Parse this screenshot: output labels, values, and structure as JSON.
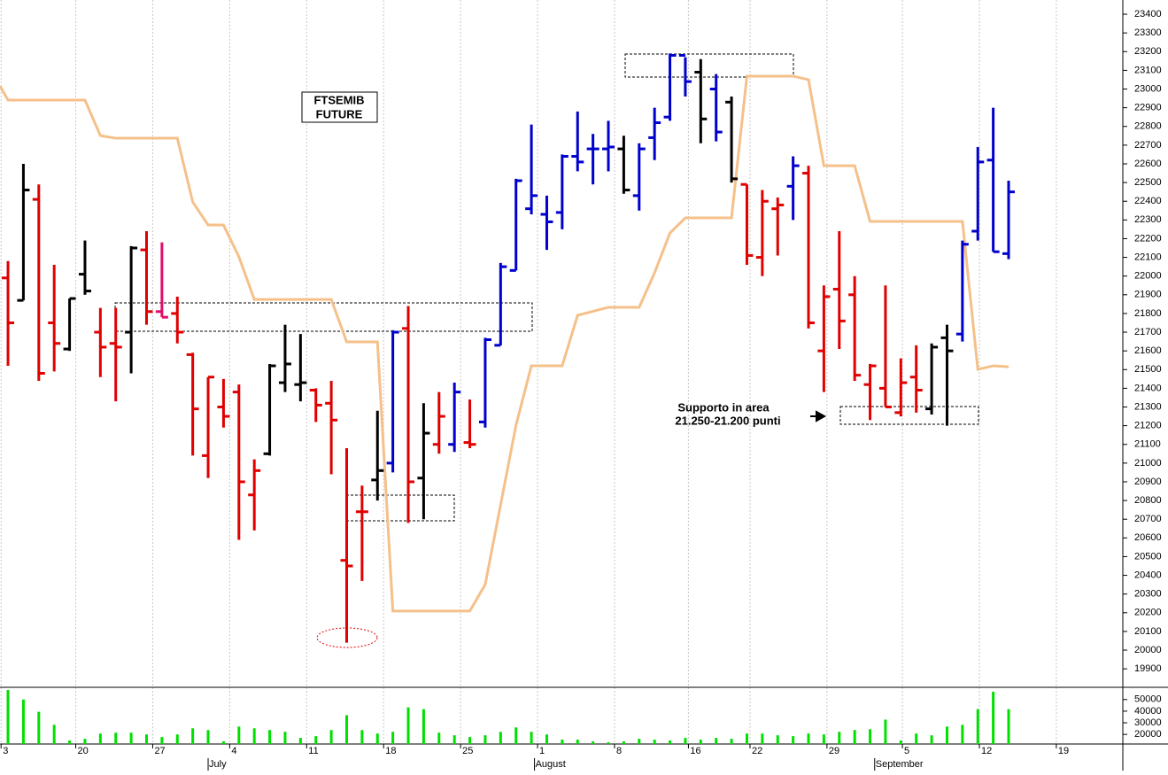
{
  "chart_data": {
    "type": "ohlc",
    "title": [
      "FTSEMIB",
      "FUTURE"
    ],
    "annotation": [
      "Supporto in area",
      "21.250-21.200 punti"
    ],
    "xlim": [
      -0.52,
      72.42
    ],
    "ylim": [
      19806,
      23476
    ],
    "yticks": [
      19900,
      20000,
      20100,
      20200,
      20300,
      20400,
      20500,
      20600,
      20700,
      20800,
      20900,
      21000,
      21100,
      21200,
      21300,
      21400,
      21500,
      21600,
      21700,
      21800,
      21900,
      22000,
      22100,
      22200,
      22300,
      22400,
      22500,
      22600,
      22700,
      22800,
      22900,
      23000,
      23100,
      23200,
      23300,
      23400
    ],
    "xticks": [
      {
        "value": -0.45,
        "label": "3"
      },
      {
        "value": 4.4,
        "label": "20"
      },
      {
        "value": 9.4,
        "label": "27"
      },
      {
        "value": 14.4,
        "label": "4"
      },
      {
        "value": 19.4,
        "label": "11"
      },
      {
        "value": 24.4,
        "label": "18"
      },
      {
        "value": 29.4,
        "label": "25"
      },
      {
        "value": 34.4,
        "label": "1"
      },
      {
        "value": 39.4,
        "label": "8"
      },
      {
        "value": 44.2,
        "label": "16"
      },
      {
        "value": 48.2,
        "label": "22"
      },
      {
        "value": 53.2,
        "label": "29"
      },
      {
        "value": 58.1,
        "label": "5"
      },
      {
        "value": 63.1,
        "label": "12"
      },
      {
        "value": 68.1,
        "label": "19"
      }
    ],
    "months": [
      {
        "value": 13,
        "label": "July"
      },
      {
        "value": 34.2,
        "label": "August"
      },
      {
        "value": 56.3,
        "label": "September"
      }
    ],
    "open": [
      21990,
      21870,
      22410,
      21750,
      21610,
      22010,
      21700,
      21640,
      21700,
      22140,
      21810,
      21800,
      21580,
      21040,
      21300,
      21380,
      20830,
      21050,
      21430,
      21420,
      21390,
      21320,
      20480,
      20740,
      20910,
      21000,
      21720,
      20920,
      21100,
      21100,
      21110,
      21220,
      21630,
      22030,
      22360,
      22330,
      22340,
      22640,
      22680,
      22680,
      22680,
      22430,
      22740,
      22850,
      23180,
      23090,
      23000,
      22930,
      22490,
      22100,
      22360,
      22480,
      22550,
      21600,
      21930,
      21900,
      21420,
      21400,
      21270,
      21460,
      21290,
      21670,
      21690,
      22240,
      22620,
      22120
    ],
    "high": [
      22080,
      22600,
      22490,
      22060,
      21880,
      22190,
      21830,
      21830,
      22160,
      22240,
      22180,
      21890,
      21590,
      21460,
      21450,
      21420,
      21020,
      21530,
      21740,
      21690,
      21400,
      21440,
      21080,
      20880,
      21280,
      21710,
      21840,
      21320,
      21380,
      21430,
      21340,
      21670,
      22070,
      22520,
      22810,
      22430,
      22650,
      22880,
      22760,
      22830,
      22750,
      22710,
      22900,
      23190,
      23170,
      23160,
      23080,
      22960,
      22490,
      22460,
      22420,
      22640,
      22590,
      21950,
      22240,
      22000,
      21530,
      21950,
      21560,
      21630,
      21640,
      21740,
      22190,
      22690,
      22900,
      22510
    ],
    "low": [
      21520,
      21870,
      21440,
      21490,
      21600,
      21900,
      21460,
      21330,
      21480,
      21740,
      21780,
      21640,
      21040,
      20920,
      21190,
      20590,
      20640,
      21040,
      21380,
      21330,
      21220,
      20940,
      20040,
      20370,
      20800,
      20950,
      20680,
      20700,
      21050,
      21060,
      21080,
      21190,
      21630,
      22030,
      22330,
      22140,
      22250,
      22560,
      22490,
      22560,
      22440,
      22350,
      22620,
      22830,
      22960,
      22710,
      22720,
      22500,
      22060,
      22000,
      22110,
      22300,
      21720,
      21380,
      21610,
      21440,
      21230,
      21300,
      21250,
      21270,
      21260,
      21200,
      21650,
      22190,
      22130,
      22090
    ],
    "close": [
      21750,
      22460,
      21480,
      21640,
      21880,
      21920,
      21620,
      21620,
      22150,
      21810,
      21780,
      21700,
      21290,
      21460,
      21250,
      20900,
      20960,
      21520,
      21530,
      21430,
      21310,
      21230,
      20450,
      20740,
      20960,
      21700,
      20900,
      21160,
      21250,
      21380,
      21100,
      21660,
      22050,
      22510,
      22430,
      22290,
      22640,
      22610,
      22680,
      22690,
      22460,
      22680,
      22820,
      23180,
      23040,
      22840,
      22770,
      22520,
      22110,
      22400,
      22380,
      22590,
      21750,
      21890,
      21760,
      21470,
      21520,
      21300,
      21430,
      21390,
      21620,
      21600,
      22170,
      22610,
      22130,
      22450
    ],
    "colors": [
      "#e00000",
      "#000000",
      "#e00000",
      "#e00000",
      "#000000",
      "#000000",
      "#e00000",
      "#e00000",
      "#000000",
      "#e00000",
      "#e0106a",
      "#e00000",
      "#e00000",
      "#e00000",
      "#e00000",
      "#e00000",
      "#e00000",
      "#000000",
      "#000000",
      "#000000",
      "#e00000",
      "#e00000",
      "#e00000",
      "#e00000",
      "#000000",
      "#0000cc",
      "#e00000",
      "#000000",
      "#e00000",
      "#0000cc",
      "#e00000",
      "#0000cc",
      "#0000cc",
      "#0000cc",
      "#0000cc",
      "#0000cc",
      "#0000cc",
      "#0000cc",
      "#0000cc",
      "#0000cc",
      "#000000",
      "#0000cc",
      "#0000cc",
      "#0000cc",
      "#0000cc",
      "#000000",
      "#0000cc",
      "#000000",
      "#e00000",
      "#e00000",
      "#e00000",
      "#0000cc",
      "#e00000",
      "#e00000",
      "#e00000",
      "#e00000",
      "#e00000",
      "#e00000",
      "#e00000",
      "#e00000",
      "#000000",
      "#000000",
      "#0000cc",
      "#0000cc",
      "#0000cc",
      "#0000cc"
    ],
    "band": {
      "color": "#f5c08a",
      "x": [
        -0.52,
        0,
        5,
        6,
        7,
        11,
        12,
        13,
        14,
        15,
        16,
        21,
        22,
        24,
        25,
        30,
        31,
        32,
        33,
        34,
        36,
        37,
        39,
        41,
        42,
        43,
        44,
        47,
        48,
        51,
        52,
        53,
        55,
        56,
        62,
        63,
        64,
        65
      ],
      "values": [
        23016,
        22941,
        22941,
        22751,
        22737,
        22737,
        22396,
        22273,
        22273,
        22103,
        21875,
        21875,
        21648,
        21648,
        20209,
        20209,
        20351,
        20777,
        21203,
        21520,
        21520,
        21790,
        21833,
        21833,
        22017,
        22230,
        22311,
        22311,
        23069,
        23069,
        23050,
        22590,
        22590,
        22292,
        22292,
        21501,
        21520,
        21515
      ]
    },
    "volume": {
      "color": "#00e000",
      "ylim": [
        11750,
        59750
      ],
      "yticks": [
        20000,
        30000,
        40000,
        50000
      ],
      "values": [
        58260,
        50000,
        39500,
        28250,
        14750,
        16250,
        20750,
        21500,
        21500,
        20000,
        17750,
        20000,
        25250,
        23750,
        14000,
        26750,
        25250,
        23750,
        22250,
        17000,
        18500,
        23750,
        36500,
        23750,
        20750,
        22250,
        43250,
        41750,
        21500,
        19250,
        17750,
        19250,
        22250,
        26000,
        22250,
        20000,
        15500,
        15500,
        14000,
        13250,
        14000,
        16250,
        15500,
        14750,
        17000,
        15500,
        17000,
        16250,
        20750,
        20750,
        19250,
        18500,
        20750,
        20000,
        22250,
        23750,
        24500,
        32750,
        14750,
        20750,
        19250,
        26750,
        28250,
        41750,
        56750,
        41750
      ]
    }
  }
}
